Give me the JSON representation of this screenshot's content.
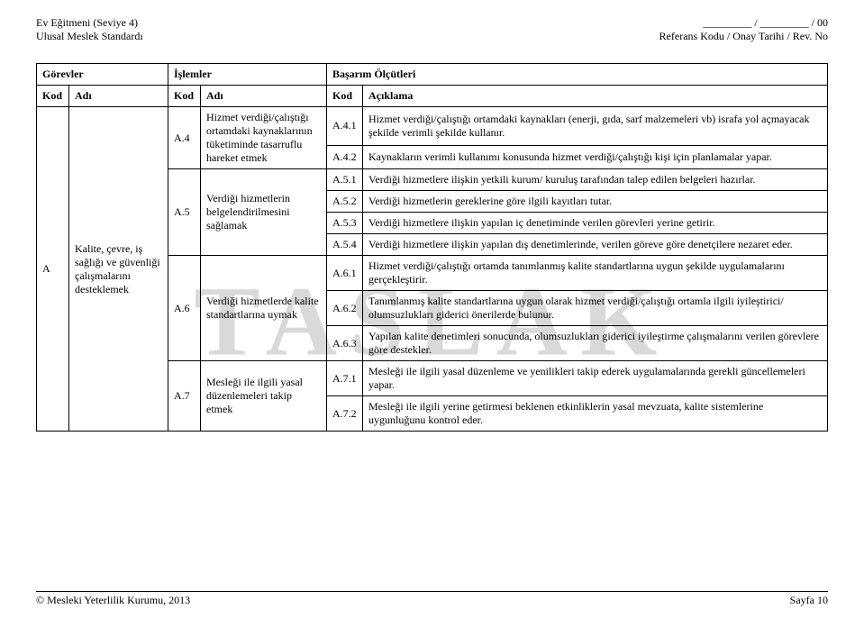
{
  "header": {
    "left_line1": "Ev Eğitmeni (Seviye 4)",
    "left_line2": "Ulusal Meslek Standardı",
    "right_line1_prefix": "",
    "right_line1_blank": "_________ / _________ / 00",
    "right_line2": "Referans Kodu / Onay Tarihi / Rev. No"
  },
  "watermark": "TASLAK",
  "table": {
    "headers": {
      "gorevler": "Görevler",
      "islemler": "İşlemler",
      "basarim": "Başarım Ölçütleri",
      "kod": "Kod",
      "adi": "Adı",
      "aciklama": "Açıklama"
    },
    "gorev": {
      "kod": "A",
      "adi": "Kalite, çevre, iş sağlığı ve güvenliği çalışmalarını desteklemek"
    },
    "islemler": [
      {
        "kod": "A.4",
        "adi": "Hizmet verdiği/çalıştığı ortamdaki kaynaklarının tüketiminde tasarruflu hareket etmek"
      },
      {
        "kod": "A.5",
        "adi": "Verdiği hizmetlerin belgelendirilmesini sağlamak"
      },
      {
        "kod": "A.6",
        "adi": "Verdiği hizmetlerde kalite standartlarına uymak"
      },
      {
        "kod": "A.7",
        "adi": "Mesleği ile ilgili yasal düzenlemeleri takip etmek"
      }
    ],
    "kriterler": [
      {
        "kod": "A.4.1",
        "text": "Hizmet verdiği/çalıştığı ortamdaki kaynakları (enerji, gıda, sarf malzemeleri vb) israfa yol açmayacak şekilde verimli şekilde kullanır."
      },
      {
        "kod": "A.4.2",
        "text": "Kaynakların verimli kullanımı konusunda hizmet verdiği/çalıştığı kişi için planlamalar yapar."
      },
      {
        "kod": "A.5.1",
        "text": "Verdiği hizmetlere ilişkin yetkili kurum/ kuruluş tarafından talep edilen belgeleri hazırlar."
      },
      {
        "kod": "A.5.2",
        "text": "Verdiği hizmetlerin gereklerine göre ilgili kayıtları tutar."
      },
      {
        "kod": "A.5.3",
        "text": "Verdiği hizmetlere ilişkin yapılan iç denetiminde verilen görevleri yerine getirir."
      },
      {
        "kod": "A.5.4",
        "text": "Verdiği hizmetlere ilişkin yapılan dış denetimlerinde, verilen göreve göre denetçilere nezaret eder."
      },
      {
        "kod": "A.6.1",
        "text": "Hizmet verdiği/çalıştığı ortamda tanımlanmış kalite standartlarına uygun şekilde uygulamalarını gerçekleştirir."
      },
      {
        "kod": "A.6.2",
        "text": "Tanımlanmış kalite standartlarına uygun olarak hizmet verdiği/çalıştığı ortamla ilgili iyileştirici/ olumsuzlukları giderici önerilerde bulunur."
      },
      {
        "kod": "A.6.3",
        "text": "Yapılan kalite denetimleri sonucunda, olumsuzlukları giderici iyileştirme çalışmalarını verilen görevlere göre destekler."
      },
      {
        "kod": "A.7.1",
        "text": "Mesleği ile ilgili yasal düzenleme ve yenilikleri takip ederek uygulamalarında gerekli güncellemeleri yapar."
      },
      {
        "kod": "A.7.2",
        "text": "Mesleği ile ilgili yerine getirmesi beklenen etkinliklerin yasal mevzuata, kalite sistemlerine uygunluğunu kontrol eder."
      }
    ]
  },
  "footer": {
    "left": "© Mesleki Yeterlilik Kurumu, 2013",
    "right": "Sayfa 10"
  }
}
